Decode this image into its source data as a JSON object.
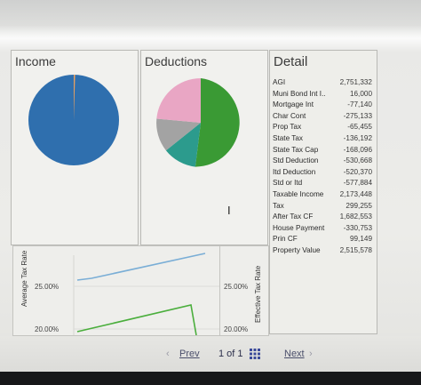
{
  "panels": {
    "income": {
      "title": "Income"
    },
    "deductions": {
      "title": "Deductions"
    },
    "detail": {
      "title": "Detail"
    }
  },
  "colors": {
    "income_main": "#2f6fae",
    "income_slice": "#e8a060",
    "ded_green": "#3a9a34",
    "ded_teal": "#2c9b8d",
    "ded_gray": "#a3a3a3",
    "ded_pink": "#e9a6c4",
    "line_blue": "#7aaed6",
    "line_green": "#4aae3c"
  },
  "detail": {
    "rows": [
      {
        "label": "AGI",
        "value": "2,751,332"
      },
      {
        "label": "Muni Bond Int I..",
        "value": "16,000"
      },
      {
        "label": "Mortgage Int",
        "value": "-77,140"
      },
      {
        "label": "Char Cont",
        "value": "-275,133"
      },
      {
        "label": "Prop Tax",
        "value": "-65,455"
      },
      {
        "label": "State Tax",
        "value": "-136,192"
      },
      {
        "label": "State Tax Cap",
        "value": "-168,096"
      },
      {
        "label": "Std Deduction",
        "value": "-530,668"
      },
      {
        "label": "Itd Deduction",
        "value": "-520,370"
      },
      {
        "label": "Std or Itd",
        "value": "-577,884"
      },
      {
        "label": "Taxable Income",
        "value": "2,173,448"
      },
      {
        "label": "Tax",
        "value": "299,255"
      },
      {
        "label": "After Tax CF",
        "value": "1,682,553"
      },
      {
        "label": "House Payment",
        "value": "-330,753"
      },
      {
        "label": "Prin CF",
        "value": "99,149"
      },
      {
        "label": "Property Value",
        "value": "2,515,578"
      }
    ]
  },
  "charts": {
    "left": {
      "ylabel": "Average Tax Rate",
      "ticks": [
        "25.00%",
        "20.00%"
      ]
    },
    "right": {
      "ylabel": "Effective Tax Rate",
      "ticks": [
        "25.00%",
        "20.00%"
      ]
    }
  },
  "pager": {
    "prev_label": "Prev",
    "page_text": "1 of 1",
    "next_label": "Next"
  }
}
